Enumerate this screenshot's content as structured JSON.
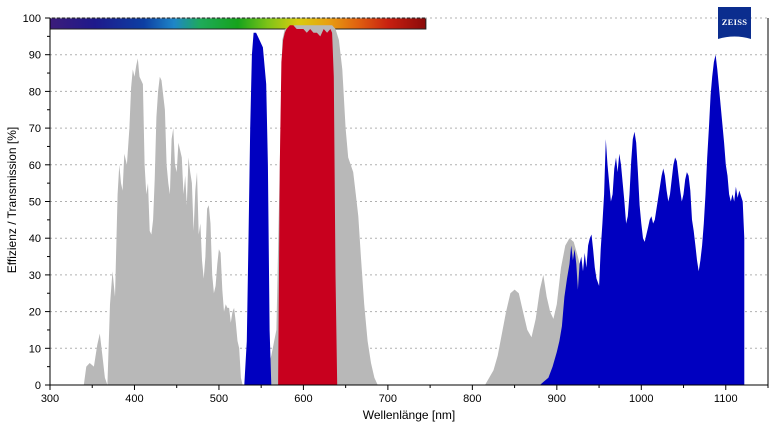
{
  "chart_data": {
    "type": "area",
    "xlabel": "Wellenlänge [nm]",
    "ylabel": "Effizienz / Transmission [%]",
    "xlim": [
      300,
      1150
    ],
    "ylim": [
      0,
      100
    ],
    "xticks": [
      300,
      400,
      500,
      600,
      700,
      800,
      900,
      1000,
      1100
    ],
    "yticks": [
      0,
      10,
      20,
      30,
      40,
      50,
      60,
      70,
      80,
      90,
      100
    ],
    "grid": "horizontal dotted",
    "spectrum_bar": {
      "range_nm": [
        300,
        745
      ]
    },
    "series": [
      {
        "color": "#b8b8b8",
        "points": [
          [
            340,
            0
          ],
          [
            343,
            5
          ],
          [
            347,
            6
          ],
          [
            352,
            5
          ],
          [
            356,
            11
          ],
          [
            359,
            14
          ],
          [
            362,
            8
          ],
          [
            365,
            2
          ],
          [
            368,
            0
          ],
          [
            371,
            22
          ],
          [
            374,
            31
          ],
          [
            377,
            24
          ],
          [
            380,
            52
          ],
          [
            382,
            60
          ],
          [
            384,
            55
          ],
          [
            386,
            53
          ],
          [
            388,
            63
          ],
          [
            391,
            60
          ],
          [
            394,
            70
          ],
          [
            396,
            81
          ],
          [
            398,
            86
          ],
          [
            400,
            84
          ],
          [
            402,
            87
          ],
          [
            404,
            89
          ],
          [
            406,
            84
          ],
          [
            408,
            83
          ],
          [
            410,
            82
          ],
          [
            412,
            60
          ],
          [
            414,
            52
          ],
          [
            416,
            55
          ],
          [
            418,
            42
          ],
          [
            420,
            41
          ],
          [
            422,
            45
          ],
          [
            424,
            56
          ],
          [
            426,
            73
          ],
          [
            428,
            80
          ],
          [
            430,
            84
          ],
          [
            432,
            83
          ],
          [
            434,
            79
          ],
          [
            436,
            75
          ],
          [
            438,
            60
          ],
          [
            440,
            55
          ],
          [
            442,
            52
          ],
          [
            444,
            67
          ],
          [
            446,
            70
          ],
          [
            448,
            60
          ],
          [
            450,
            58
          ],
          [
            452,
            66
          ],
          [
            454,
            64
          ],
          [
            456,
            62
          ],
          [
            458,
            52
          ],
          [
            460,
            57
          ],
          [
            462,
            49
          ],
          [
            464,
            62
          ],
          [
            466,
            58
          ],
          [
            468,
            55
          ],
          [
            470,
            42
          ],
          [
            472,
            53
          ],
          [
            474,
            58
          ],
          [
            476,
            41
          ],
          [
            478,
            44
          ],
          [
            480,
            34
          ],
          [
            482,
            29
          ],
          [
            484,
            35
          ],
          [
            486,
            48
          ],
          [
            488,
            49
          ],
          [
            490,
            44
          ],
          [
            492,
            30
          ],
          [
            494,
            25
          ],
          [
            496,
            27
          ],
          [
            498,
            33
          ],
          [
            500,
            37
          ],
          [
            502,
            36
          ],
          [
            504,
            26
          ],
          [
            506,
            20
          ],
          [
            508,
            22
          ],
          [
            510,
            21
          ],
          [
            512,
            21
          ],
          [
            514,
            17
          ],
          [
            516,
            20
          ],
          [
            518,
            21
          ],
          [
            520,
            17
          ],
          [
            522,
            12
          ],
          [
            524,
            10
          ],
          [
            526,
            2
          ],
          [
            528,
            0
          ],
          [
            548,
            0
          ],
          [
            555,
            2
          ],
          [
            562,
            8
          ],
          [
            568,
            15
          ],
          [
            572,
            60
          ],
          [
            575,
            94
          ],
          [
            578,
            97
          ],
          [
            590,
            98
          ],
          [
            634,
            98
          ],
          [
            638,
            97
          ],
          [
            642,
            94
          ],
          [
            646,
            86
          ],
          [
            650,
            70
          ],
          [
            653,
            62
          ],
          [
            656,
            60
          ],
          [
            659,
            58
          ],
          [
            662,
            52
          ],
          [
            665,
            46
          ],
          [
            668,
            35
          ],
          [
            672,
            22
          ],
          [
            676,
            12
          ],
          [
            680,
            6
          ],
          [
            684,
            2
          ],
          [
            688,
            0
          ],
          [
            815,
            0
          ],
          [
            820,
            2
          ],
          [
            825,
            4
          ],
          [
            830,
            8
          ],
          [
            835,
            14
          ],
          [
            840,
            20
          ],
          [
            845,
            25
          ],
          [
            850,
            26
          ],
          [
            855,
            25
          ],
          [
            860,
            20
          ],
          [
            865,
            15
          ],
          [
            870,
            13
          ],
          [
            875,
            18
          ],
          [
            880,
            26
          ],
          [
            884,
            30
          ],
          [
            888,
            24
          ],
          [
            892,
            20
          ],
          [
            896,
            18
          ],
          [
            900,
            22
          ],
          [
            905,
            32
          ],
          [
            910,
            38
          ],
          [
            915,
            40
          ],
          [
            920,
            39
          ],
          [
            925,
            35
          ],
          [
            930,
            30
          ],
          [
            935,
            25
          ],
          [
            940,
            20
          ],
          [
            944,
            15
          ],
          [
            948,
            8
          ],
          [
            952,
            2
          ],
          [
            955,
            0
          ],
          [
            1085,
            0
          ],
          [
            1088,
            28
          ],
          [
            1090,
            33
          ],
          [
            1095,
            30
          ],
          [
            1098,
            32
          ],
          [
            1100,
            0
          ]
        ]
      },
      {
        "color": "#0000c0",
        "points": [
          [
            530,
            0
          ],
          [
            533,
            12
          ],
          [
            535,
            40
          ],
          [
            537,
            70
          ],
          [
            539,
            90
          ],
          [
            541,
            96
          ],
          [
            544,
            96
          ],
          [
            548,
            94
          ],
          [
            552,
            92
          ],
          [
            556,
            82
          ],
          [
            558,
            60
          ],
          [
            560,
            15
          ],
          [
            562,
            0
          ],
          [
            880,
            0
          ],
          [
            885,
            1
          ],
          [
            890,
            2
          ],
          [
            895,
            5
          ],
          [
            900,
            9
          ],
          [
            903,
            12
          ],
          [
            906,
            16
          ],
          [
            909,
            24
          ],
          [
            912,
            29
          ],
          [
            915,
            33
          ],
          [
            917,
            38
          ],
          [
            919,
            34
          ],
          [
            921,
            37
          ],
          [
            923,
            33
          ],
          [
            925,
            26
          ],
          [
            927,
            33
          ],
          [
            929,
            35
          ],
          [
            931,
            31
          ],
          [
            933,
            36
          ],
          [
            935,
            32
          ],
          [
            937,
            38
          ],
          [
            939,
            40
          ],
          [
            941,
            41
          ],
          [
            943,
            37
          ],
          [
            945,
            32
          ],
          [
            947,
            29
          ],
          [
            950,
            27
          ],
          [
            952,
            37
          ],
          [
            954,
            44
          ],
          [
            956,
            52
          ],
          [
            958,
            67
          ],
          [
            960,
            60
          ],
          [
            962,
            55
          ],
          [
            964,
            50
          ],
          [
            966,
            52
          ],
          [
            968,
            59
          ],
          [
            970,
            62
          ],
          [
            972,
            58
          ],
          [
            974,
            63
          ],
          [
            976,
            60
          ],
          [
            978,
            55
          ],
          [
            980,
            50
          ],
          [
            982,
            44
          ],
          [
            984,
            46
          ],
          [
            986,
            52
          ],
          [
            988,
            61
          ],
          [
            990,
            67
          ],
          [
            992,
            69
          ],
          [
            994,
            66
          ],
          [
            996,
            58
          ],
          [
            998,
            49
          ],
          [
            1000,
            44
          ],
          [
            1002,
            40
          ],
          [
            1004,
            39
          ],
          [
            1006,
            41
          ],
          [
            1008,
            43
          ],
          [
            1010,
            45
          ],
          [
            1012,
            46
          ],
          [
            1014,
            44
          ],
          [
            1016,
            45
          ],
          [
            1018,
            48
          ],
          [
            1020,
            51
          ],
          [
            1022,
            54
          ],
          [
            1024,
            57
          ],
          [
            1026,
            59
          ],
          [
            1028,
            57
          ],
          [
            1030,
            53
          ],
          [
            1032,
            50
          ],
          [
            1034,
            52
          ],
          [
            1036,
            56
          ],
          [
            1038,
            60
          ],
          [
            1040,
            62
          ],
          [
            1042,
            61
          ],
          [
            1044,
            57
          ],
          [
            1046,
            53
          ],
          [
            1048,
            50
          ],
          [
            1050,
            52
          ],
          [
            1052,
            56
          ],
          [
            1054,
            58
          ],
          [
            1056,
            57
          ],
          [
            1058,
            53
          ],
          [
            1060,
            45
          ],
          [
            1062,
            42
          ],
          [
            1064,
            38
          ],
          [
            1066,
            34
          ],
          [
            1068,
            31
          ],
          [
            1070,
            34
          ],
          [
            1072,
            38
          ],
          [
            1074,
            44
          ],
          [
            1076,
            52
          ],
          [
            1078,
            62
          ],
          [
            1080,
            70
          ],
          [
            1082,
            79
          ],
          [
            1084,
            84
          ],
          [
            1086,
            88
          ],
          [
            1088,
            90
          ],
          [
            1090,
            86
          ],
          [
            1092,
            81
          ],
          [
            1094,
            76
          ],
          [
            1096,
            71
          ],
          [
            1098,
            66
          ],
          [
            1100,
            60
          ],
          [
            1102,
            57
          ],
          [
            1104,
            52
          ],
          [
            1106,
            50
          ],
          [
            1108,
            52
          ],
          [
            1110,
            50
          ],
          [
            1112,
            54
          ],
          [
            1114,
            51
          ],
          [
            1116,
            53
          ],
          [
            1120,
            50
          ],
          [
            1122,
            40
          ]
        ]
      },
      {
        "color": "#c8001e",
        "points": [
          [
            570,
            0
          ],
          [
            572,
            60
          ],
          [
            574,
            88
          ],
          [
            576,
            94
          ],
          [
            578,
            96
          ],
          [
            580,
            97
          ],
          [
            584,
            98
          ],
          [
            588,
            98
          ],
          [
            592,
            97
          ],
          [
            596,
            97
          ],
          [
            600,
            97
          ],
          [
            604,
            96
          ],
          [
            608,
            97
          ],
          [
            612,
            96
          ],
          [
            616,
            96
          ],
          [
            620,
            95
          ],
          [
            624,
            97
          ],
          [
            628,
            96
          ],
          [
            632,
            97
          ],
          [
            634,
            96
          ],
          [
            636,
            84
          ],
          [
            638,
            30
          ],
          [
            640,
            0
          ]
        ]
      }
    ]
  },
  "logo": {
    "text": "ZEISS",
    "color": "#0b2d8e"
  }
}
